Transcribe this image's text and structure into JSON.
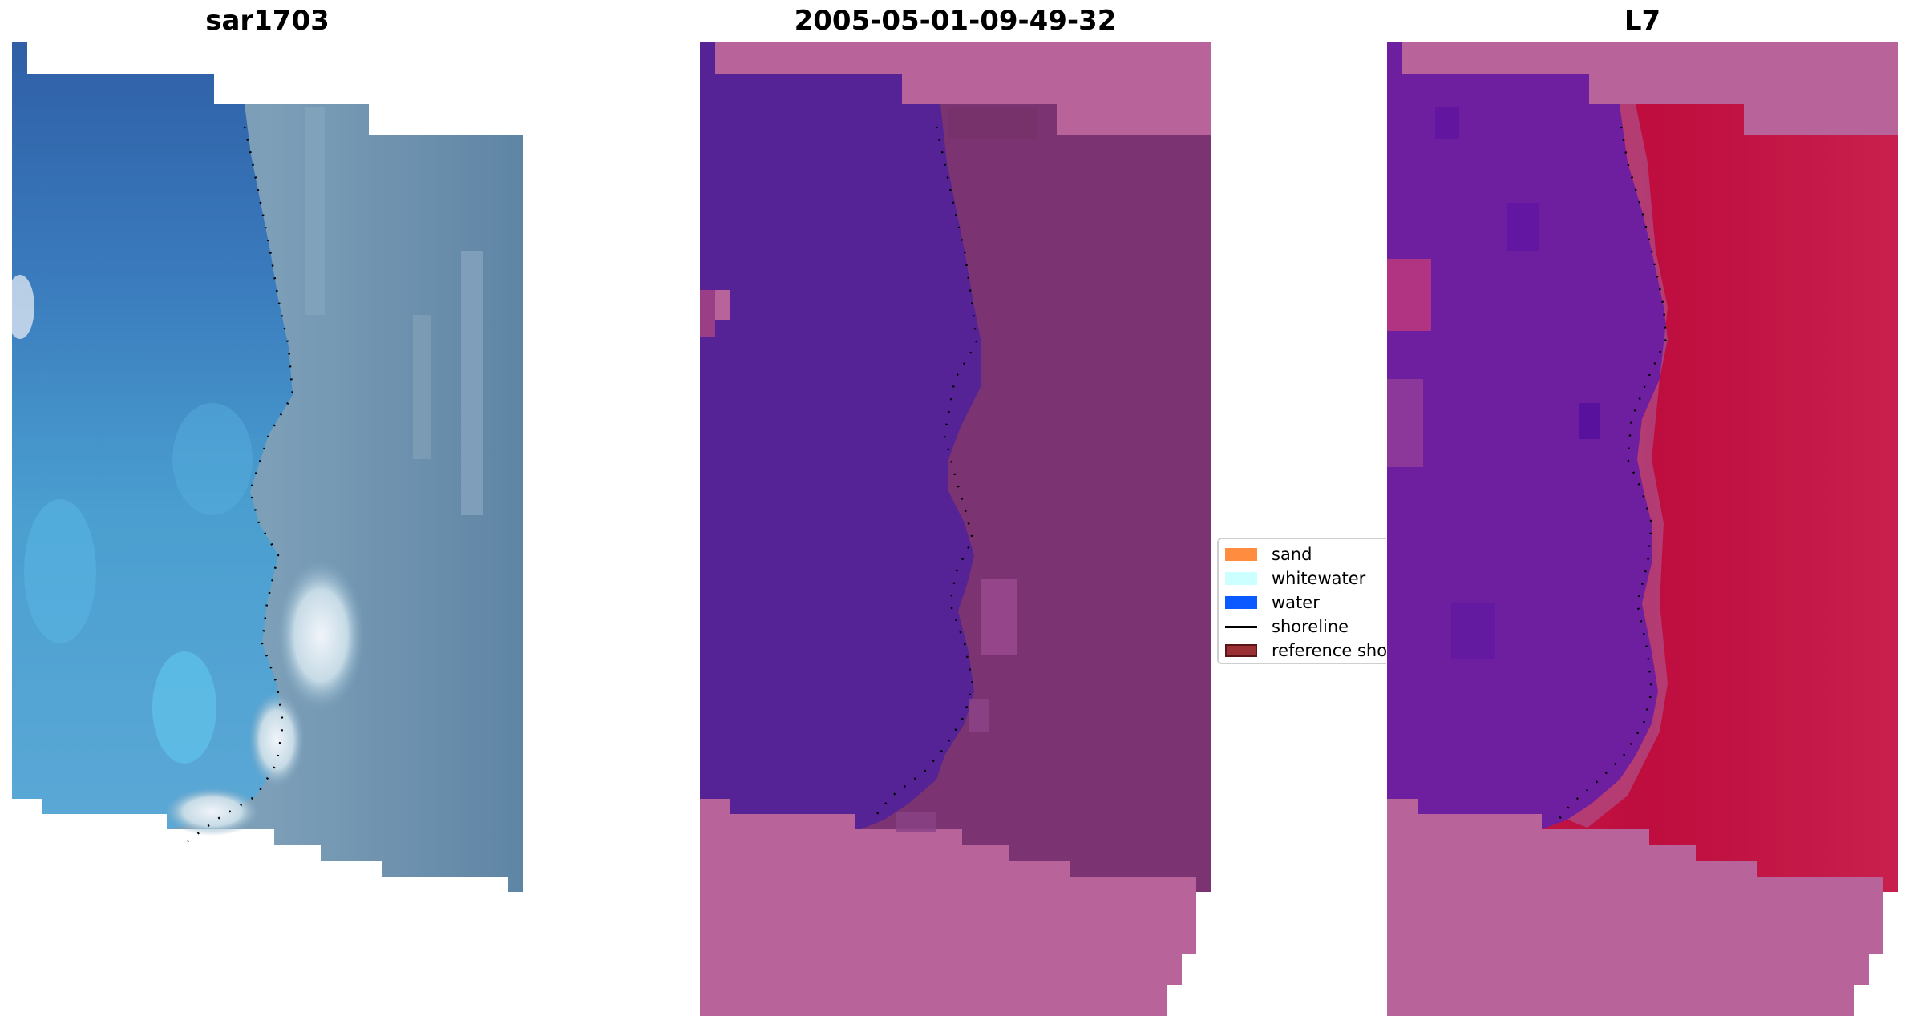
{
  "panels": {
    "left": {
      "title": "sar1703"
    },
    "middle": {
      "title": "2005-05-01-09-49-32"
    },
    "right": {
      "title": "L7"
    }
  },
  "legend": {
    "items": [
      {
        "label": "sand",
        "kind": "patch",
        "color": "#ff8c3f"
      },
      {
        "label": "whitewater",
        "kind": "patch",
        "color": "#ccffff"
      },
      {
        "label": "water",
        "kind": "patch",
        "color": "#0a5aff"
      },
      {
        "label": "shoreline",
        "kind": "line",
        "color": "#000000"
      },
      {
        "label": "reference sho",
        "kind": "patch",
        "color": "#9a3033",
        "edge": "#5a1518"
      }
    ]
  },
  "colors": {
    "background": "#ffffff",
    "nodata_pink": "#b8649a",
    "classified_water": "#552396",
    "classified_land": "#7b3471",
    "index_water": "#6e1fa0",
    "index_land": "#be0d3e",
    "rgb_sea": "#3f6fae",
    "rgb_land": "#5e88a8",
    "shoreline": "#000000"
  }
}
